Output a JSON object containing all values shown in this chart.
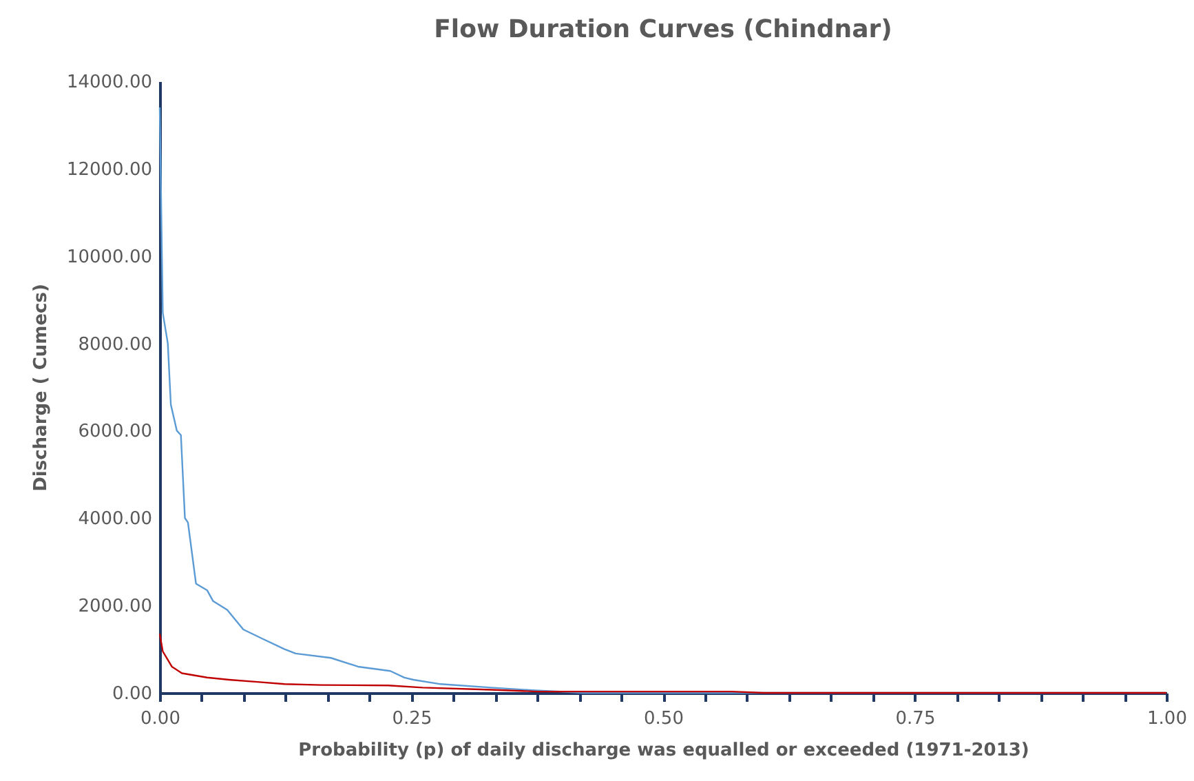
{
  "chart_data": {
    "type": "line",
    "title": "Flow Duration Curves (Chindnar)",
    "xlabel": "Probability (p) of daily discharge was equalled or exceeded (1971-2013)",
    "ylabel": "Discharge ( Cumecs)",
    "xlim": [
      0,
      1
    ],
    "xticks": [
      {
        "value": 0,
        "label": "0.00"
      },
      {
        "value": 0.0417,
        "label": null
      },
      {
        "value": 0.0833,
        "label": null
      },
      {
        "value": 0.125,
        "label": null
      },
      {
        "value": 0.1667,
        "label": null
      },
      {
        "value": 0.2083,
        "label": null
      },
      {
        "value": 0.25,
        "label": "0.25"
      },
      {
        "value": 0.2917,
        "label": null
      },
      {
        "value": 0.3333,
        "label": null
      },
      {
        "value": 0.375,
        "label": null
      },
      {
        "value": 0.4167,
        "label": null
      },
      {
        "value": 0.4583,
        "label": null
      },
      {
        "value": 0.5,
        "label": "0.50"
      },
      {
        "value": 0.5417,
        "label": null
      },
      {
        "value": 0.5833,
        "label": null
      },
      {
        "value": 0.625,
        "label": null
      },
      {
        "value": 0.6667,
        "label": null
      },
      {
        "value": 0.7083,
        "label": null
      },
      {
        "value": 0.75,
        "label": "0.75"
      },
      {
        "value": 0.7917,
        "label": null
      },
      {
        "value": 0.8333,
        "label": null
      },
      {
        "value": 0.875,
        "label": null
      },
      {
        "value": 0.9167,
        "label": null
      },
      {
        "value": 0.9583,
        "label": null
      },
      {
        "value": 1,
        "label": "1.00"
      }
    ],
    "ylim": [
      0,
      14000
    ],
    "yticks": [
      {
        "value": 0,
        "label": "0.00"
      },
      {
        "value": 2000,
        "label": "2000.00"
      },
      {
        "value": 4000,
        "label": "4000.00"
      },
      {
        "value": 6000,
        "label": "6000.00"
      },
      {
        "value": 8000,
        "label": "8000.00"
      },
      {
        "value": 10000,
        "label": "10000.00"
      },
      {
        "value": 12000,
        "label": "12000.00"
      },
      {
        "value": 14000,
        "label": "14000.00"
      }
    ],
    "grid": false,
    "legend": false,
    "marker": "none",
    "line_style": "solid",
    "series": [
      {
        "color": "#5b9bd5",
        "x": [
          0,
          0.003,
          0.008,
          0.011,
          0.017,
          0.021,
          0.025,
          0.028,
          0.036,
          0.047,
          0.053,
          0.067,
          0.083,
          0.101,
          0.124,
          0.135,
          0.17,
          0.197,
          0.229,
          0.243,
          0.252,
          0.279,
          0.329,
          0.37,
          0.398,
          0.42,
          1.0
        ],
        "values": [
          13400,
          8700,
          8000,
          6600,
          6000,
          5900,
          4000,
          3900,
          2500,
          2350,
          2100,
          1900,
          1450,
          1250,
          1000,
          900,
          800,
          600,
          500,
          350,
          300,
          200,
          120,
          60,
          30,
          0,
          0
        ]
      },
      {
        "color": "#c00000",
        "x": [
          0,
          0.003,
          0.012,
          0.022,
          0.047,
          0.069,
          0.097,
          0.124,
          0.16,
          0.227,
          0.261,
          0.329,
          0.375,
          0.411,
          0.568,
          0.6,
          0.96,
          1.0
        ],
        "values": [
          1350,
          950,
          600,
          450,
          350,
          300,
          250,
          200,
          180,
          170,
          120,
          70,
          30,
          30,
          30,
          0,
          0,
          0
        ]
      }
    ]
  }
}
